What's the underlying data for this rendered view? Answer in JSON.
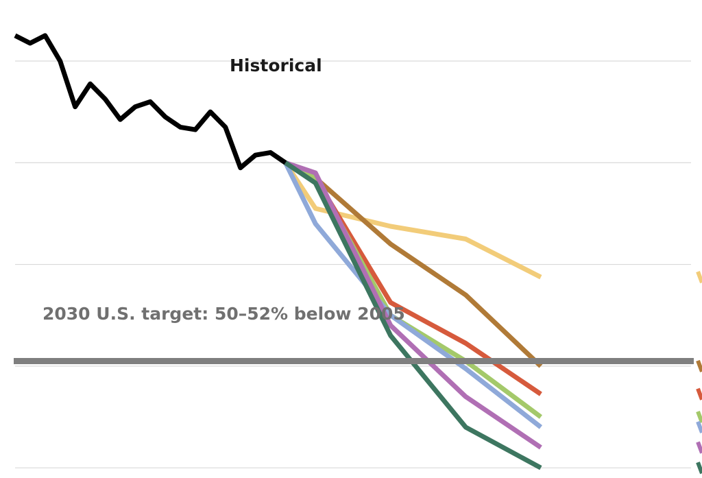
{
  "chart_data": {
    "type": "line",
    "title": "",
    "xlabel": "",
    "ylabel": "",
    "grid": true,
    "legend": "none",
    "x": [
      1990,
      1991,
      1992,
      1993,
      1994,
      1995,
      1996,
      1997,
      1998,
      1999,
      2000,
      2001,
      2002,
      2003,
      2004,
      2005,
      2006,
      2007,
      2008,
      2009,
      2010,
      2011,
      2012,
      2013,
      2014,
      2015,
      2016,
      2017,
      2018,
      2019,
      2020,
      2021,
      2022,
      2023,
      2024,
      2025,
      2026,
      2027,
      2028,
      2029,
      2030,
      2031,
      2032,
      2033,
      2034,
      2035
    ],
    "xlim": [
      1990,
      2035
    ],
    "ylim": [
      10,
      104
    ],
    "gridlines_y": [
      92,
      72,
      52,
      32,
      12
    ],
    "annotations": {
      "historical_label": "Historical",
      "target_label": "2030 U.S. target: 50–52% below 2005"
    },
    "target_line": {
      "y": 33,
      "color": "#7f7f7f"
    },
    "historical": {
      "name": "Historical",
      "color": "#000000",
      "points": [
        [
          1990,
          97
        ],
        [
          1991,
          95.5
        ],
        [
          1992,
          97
        ],
        [
          1993,
          92
        ],
        [
          1994,
          83
        ],
        [
          1995,
          87.5
        ],
        [
          1996,
          84.5
        ],
        [
          1997,
          80.5
        ],
        [
          1998,
          83
        ],
        [
          1999,
          84
        ],
        [
          2000,
          81
        ],
        [
          2001,
          79
        ],
        [
          2002,
          78.5
        ],
        [
          2003,
          82
        ],
        [
          2004,
          79
        ],
        [
          2005,
          71
        ],
        [
          2006,
          73.5
        ],
        [
          2007,
          74
        ],
        [
          2008,
          72
        ]
      ]
    },
    "projections": [
      {
        "color": "#f2cc79",
        "points": [
          [
            2008,
            72
          ],
          [
            2010,
            63
          ],
          [
            2015,
            59.5
          ],
          [
            2020,
            57
          ],
          [
            2025,
            49.5
          ]
        ]
      },
      {
        "color": "#b07a37",
        "points": [
          [
            2008,
            72
          ],
          [
            2010,
            69
          ],
          [
            2015,
            56
          ],
          [
            2020,
            46
          ],
          [
            2025,
            32
          ]
        ]
      },
      {
        "color": "#d65a3c",
        "points": [
          [
            2008,
            72
          ],
          [
            2010,
            69
          ],
          [
            2015,
            44.5
          ],
          [
            2020,
            36.5
          ],
          [
            2025,
            26.5
          ]
        ]
      },
      {
        "color": "#a4c96a",
        "points": [
          [
            2008,
            72
          ],
          [
            2010,
            69
          ],
          [
            2015,
            42
          ],
          [
            2020,
            33
          ],
          [
            2025,
            22
          ]
        ]
      },
      {
        "color": "#8fa9d9",
        "points": [
          [
            2008,
            72
          ],
          [
            2010,
            60
          ],
          [
            2015,
            42
          ],
          [
            2020,
            31.5
          ],
          [
            2025,
            20
          ]
        ]
      },
      {
        "color": "#b06fb4",
        "points": [
          [
            2008,
            72
          ],
          [
            2010,
            70
          ],
          [
            2015,
            40
          ],
          [
            2020,
            26
          ],
          [
            2025,
            16
          ]
        ]
      },
      {
        "color": "#3d7660",
        "points": [
          [
            2008,
            72
          ],
          [
            2010,
            68
          ],
          [
            2015,
            38
          ],
          [
            2020,
            20
          ],
          [
            2025,
            12
          ]
        ]
      }
    ]
  }
}
